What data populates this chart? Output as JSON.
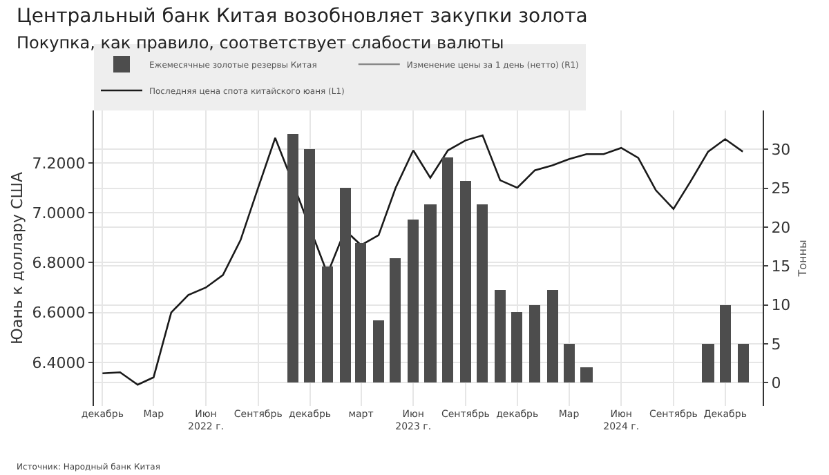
{
  "chart_data": {
    "type": "bar",
    "title": "Центральный банк Китая возобновляет закупки золота",
    "subtitle": "Покупка, как правило, соответствует слабости валюты",
    "ylabel": "Юань к доллару США",
    "y2label": "Тонны",
    "x": [
      "2021-12",
      "2022-01",
      "2022-02",
      "2022-03",
      "2022-04",
      "2022-05",
      "2022-06",
      "2022-07",
      "2022-08",
      "2022-09",
      "2022-10",
      "2022-11",
      "2022-12",
      "2023-01",
      "2023-02",
      "2023-03",
      "2023-04",
      "2023-05",
      "2023-06",
      "2023-07",
      "2023-08",
      "2023-09",
      "2023-10",
      "2023-11",
      "2023-12",
      "2024-01",
      "2024-02",
      "2024-03",
      "2024-04",
      "2024-05",
      "2024-06",
      "2024-07",
      "2024-08",
      "2024-09",
      "2024-10",
      "2024-11",
      "2024-12",
      "2025-01"
    ],
    "series": [
      {
        "name": "Ежемесячные золотые резервы Китая",
        "axis": "y2",
        "color": "#4d4d4d",
        "values": [
          0,
          0,
          0,
          0,
          0,
          0,
          0,
          0,
          0,
          0,
          0,
          32,
          30,
          15,
          25,
          18,
          8,
          16,
          21,
          23,
          29,
          26,
          23,
          12,
          9,
          10,
          12,
          5,
          2,
          0,
          0,
          0,
          0,
          0,
          0,
          5,
          10,
          5
        ]
      },
      {
        "name": "Изменение цены за 1 день (нетто) (R1)",
        "type": "line",
        "color": "#888888",
        "values": [
          null,
          null,
          null,
          null,
          null,
          null,
          null,
          null,
          null,
          null,
          null,
          null,
          null,
          null,
          null,
          null,
          null,
          null,
          null,
          null,
          null,
          null,
          null,
          null,
          null,
          null,
          null,
          null,
          null,
          null,
          null,
          null,
          null,
          null,
          null,
          null,
          null,
          null
        ]
      },
      {
        "name": "Последняя цена спота китайского юаня (L1)",
        "type": "line",
        "color": "#1a1a1a",
        "values": [
          6.356,
          6.36,
          6.31,
          6.34,
          6.6,
          6.67,
          6.7,
          6.75,
          6.89,
          7.1,
          7.3,
          7.12,
          6.94,
          6.755,
          6.93,
          6.87,
          6.91,
          7.1,
          7.25,
          7.14,
          7.25,
          7.29,
          7.31,
          7.13,
          7.1,
          7.17,
          7.19,
          7.215,
          7.235,
          7.235,
          7.26,
          7.22,
          7.09,
          7.015,
          7.125,
          7.245,
          7.295,
          7.245
        ]
      }
    ],
    "xlim": [
      "2021-11-16",
      "2025-02-05"
    ],
    "xticks": [
      {
        "value": "2021-12",
        "label": "декабрь"
      },
      {
        "value": "2022-03",
        "label": "Мар"
      },
      {
        "value": "2022-06",
        "label": "Июн\n2022 г."
      },
      {
        "value": "2022-09",
        "label": "Сентябрь"
      },
      {
        "value": "2022-12",
        "label": "декабрь"
      },
      {
        "value": "2023-03",
        "label": "март"
      },
      {
        "value": "2023-06",
        "label": "Июн\n2023 г."
      },
      {
        "value": "2023-09",
        "label": "Сентябрь"
      },
      {
        "value": "2023-12",
        "label": "декабрь"
      },
      {
        "value": "2024-03",
        "label": "Мар"
      },
      {
        "value": "2024-06",
        "label": "Июн\n2024 г."
      },
      {
        "value": "2024-09",
        "label": "Сентябрь"
      },
      {
        "value": "2024-12",
        "label": "Декабрь"
      }
    ],
    "ylim": [
      6.225,
      7.41
    ],
    "yticks": [
      {
        "value": 6.4,
        "label": "6.4000"
      },
      {
        "value": 6.6,
        "label": "6.6000"
      },
      {
        "value": 6.8,
        "label": "6.8000"
      },
      {
        "value": 7.0,
        "label": "7.0000"
      },
      {
        "value": 7.2,
        "label": "7.2000"
      }
    ],
    "y2lim": [
      -3,
      35
    ],
    "y2ticks": [
      0,
      5,
      10,
      15,
      20,
      25,
      30
    ],
    "grid": true,
    "legend": "top left",
    "annotations": [
      "Источник: Народный банк Китая"
    ]
  }
}
